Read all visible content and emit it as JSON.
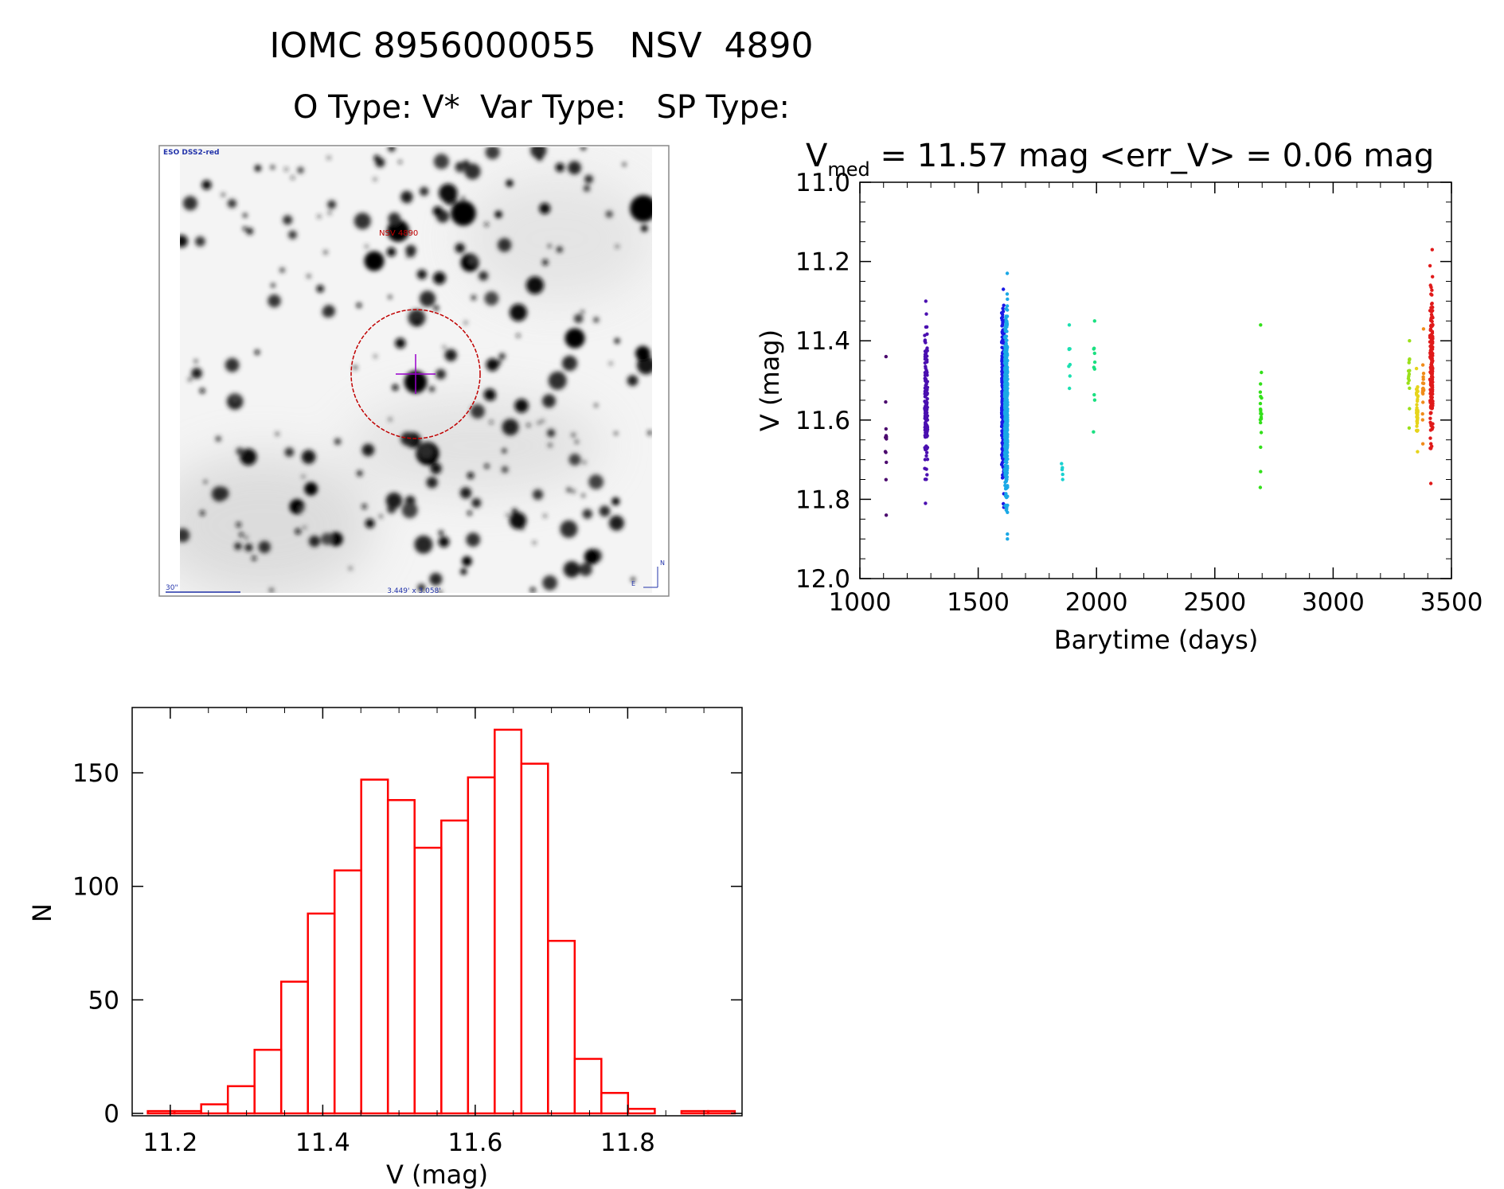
{
  "header": {
    "title_line1": "IOMC 8956000055   NSV  4890",
    "title_line2": "O Type: V*  Var Type:   SP Type:"
  },
  "image_panel": {
    "survey_label": "ESO DSS2-red",
    "target_label": "NSV 4890",
    "scale_label": "30\"",
    "fov_label": "3.449' x 3.058'",
    "compass_north": "N",
    "compass_east": "E",
    "colors": {
      "circle": "#c00000",
      "marker": "#9900cc",
      "labels": "#2233aa"
    }
  },
  "lightcurve_panel": {
    "stat_prefix": "V",
    "stat_subscript": "med",
    "stat_rest": " = 11.57 mag <err_V> = 0.06 mag"
  },
  "chart_data": [
    {
      "type": "scatter",
      "xlabel": "Barytime (days)",
      "ylabel": "V (mag)",
      "xlim": [
        1000,
        3500
      ],
      "ylim": [
        12.0,
        11.0
      ],
      "y_inverted": true,
      "x_ticks": [
        "1000",
        "1500",
        "2000",
        "2500",
        "3000",
        "3500"
      ],
      "y_ticks": [
        "11.0",
        "11.2",
        "11.4",
        "11.6",
        "11.8",
        "12.0"
      ],
      "color_scale": "time-ordered rainbow (purple to red)",
      "groups": [
        {
          "x": 1110,
          "y_min": 11.44,
          "y_max": 11.84,
          "n": 12,
          "color": "#4b0a6e"
        },
        {
          "x": 1280,
          "y_min": 11.3,
          "y_max": 11.81,
          "n": 150,
          "color": "#4a0fb0"
        },
        {
          "x": 1605,
          "y_min": 11.27,
          "y_max": 11.82,
          "n": 320,
          "color": "#1a1ae6"
        },
        {
          "x": 1618,
          "y_min": 11.23,
          "y_max": 11.9,
          "n": 420,
          "color": "#1aa8e6"
        },
        {
          "x": 1855,
          "y_min": 11.71,
          "y_max": 11.75,
          "n": 5,
          "color": "#1ad1d1"
        },
        {
          "x": 1885,
          "y_min": 11.36,
          "y_max": 11.52,
          "n": 8,
          "color": "#1ae0b0"
        },
        {
          "x": 1990,
          "y_min": 11.35,
          "y_max": 11.63,
          "n": 10,
          "color": "#1ae080"
        },
        {
          "x": 2695,
          "y_min": 11.36,
          "y_max": 11.77,
          "n": 20,
          "color": "#33e01a"
        },
        {
          "x": 3320,
          "y_min": 11.4,
          "y_max": 11.62,
          "n": 14,
          "color": "#9be01a"
        },
        {
          "x": 3355,
          "y_min": 11.47,
          "y_max": 11.68,
          "n": 40,
          "color": "#e6d41a"
        },
        {
          "x": 3380,
          "y_min": 11.37,
          "y_max": 11.66,
          "n": 20,
          "color": "#f08c1a"
        },
        {
          "x": 3415,
          "y_min": 11.17,
          "y_max": 11.76,
          "n": 180,
          "color": "#e01a1a"
        }
      ]
    },
    {
      "type": "bar",
      "histogram": true,
      "xlabel": "V (mag)",
      "ylabel": "N",
      "xlim": [
        11.15,
        11.95
      ],
      "ylim": [
        0,
        170
      ],
      "x_ticks": [
        "11.2",
        "11.4",
        "11.6",
        "11.8"
      ],
      "y_ticks": [
        "0",
        "50",
        "100",
        "150"
      ],
      "bin_width": 0.035,
      "bin_centers": [
        11.188,
        11.223,
        11.258,
        11.293,
        11.328,
        11.363,
        11.398,
        11.433,
        11.468,
        11.503,
        11.538,
        11.573,
        11.608,
        11.643,
        11.678,
        11.713,
        11.748,
        11.783,
        11.818,
        11.853,
        11.888,
        11.923
      ],
      "values": [
        1,
        1,
        4,
        12,
        28,
        58,
        88,
        107,
        147,
        138,
        117,
        129,
        148,
        169,
        154,
        76,
        24,
        9,
        2,
        0,
        1,
        1
      ],
      "color": "#ff0000"
    }
  ]
}
